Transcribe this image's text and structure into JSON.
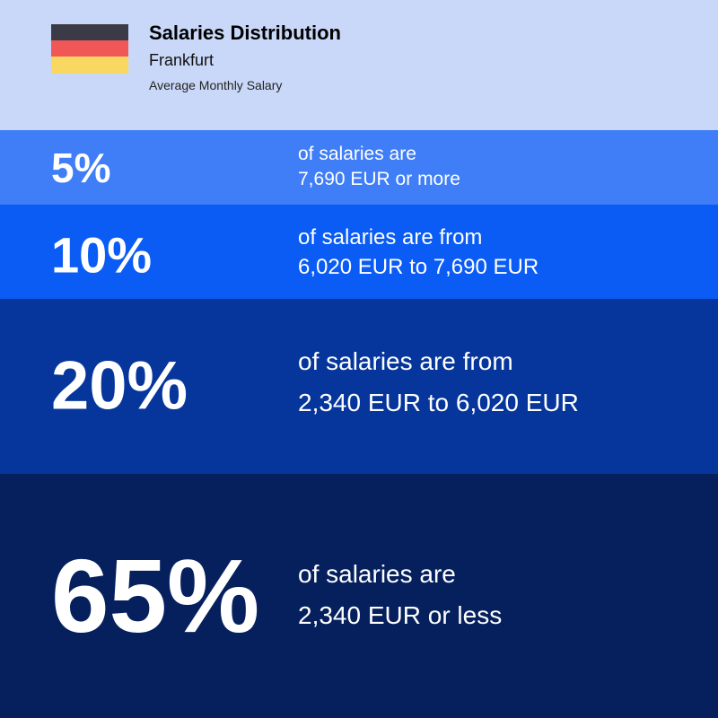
{
  "header": {
    "title": "Salaries Distribution",
    "subtitle": "Frankfurt",
    "caption": "Average Monthly Salary"
  },
  "bands": [
    {
      "percent": "5%",
      "line1": "of salaries are",
      "line2": "7,690 EUR or more"
    },
    {
      "percent": "10%",
      "line1": "of salaries are from",
      "line2": "6,020 EUR to 7,690 EUR"
    },
    {
      "percent": "20%",
      "line1": "of salaries are from",
      "line2": "2,340 EUR to 6,020 EUR"
    },
    {
      "percent": "65%",
      "line1": "of salaries are",
      "line2": "2,340 EUR or less"
    }
  ]
}
